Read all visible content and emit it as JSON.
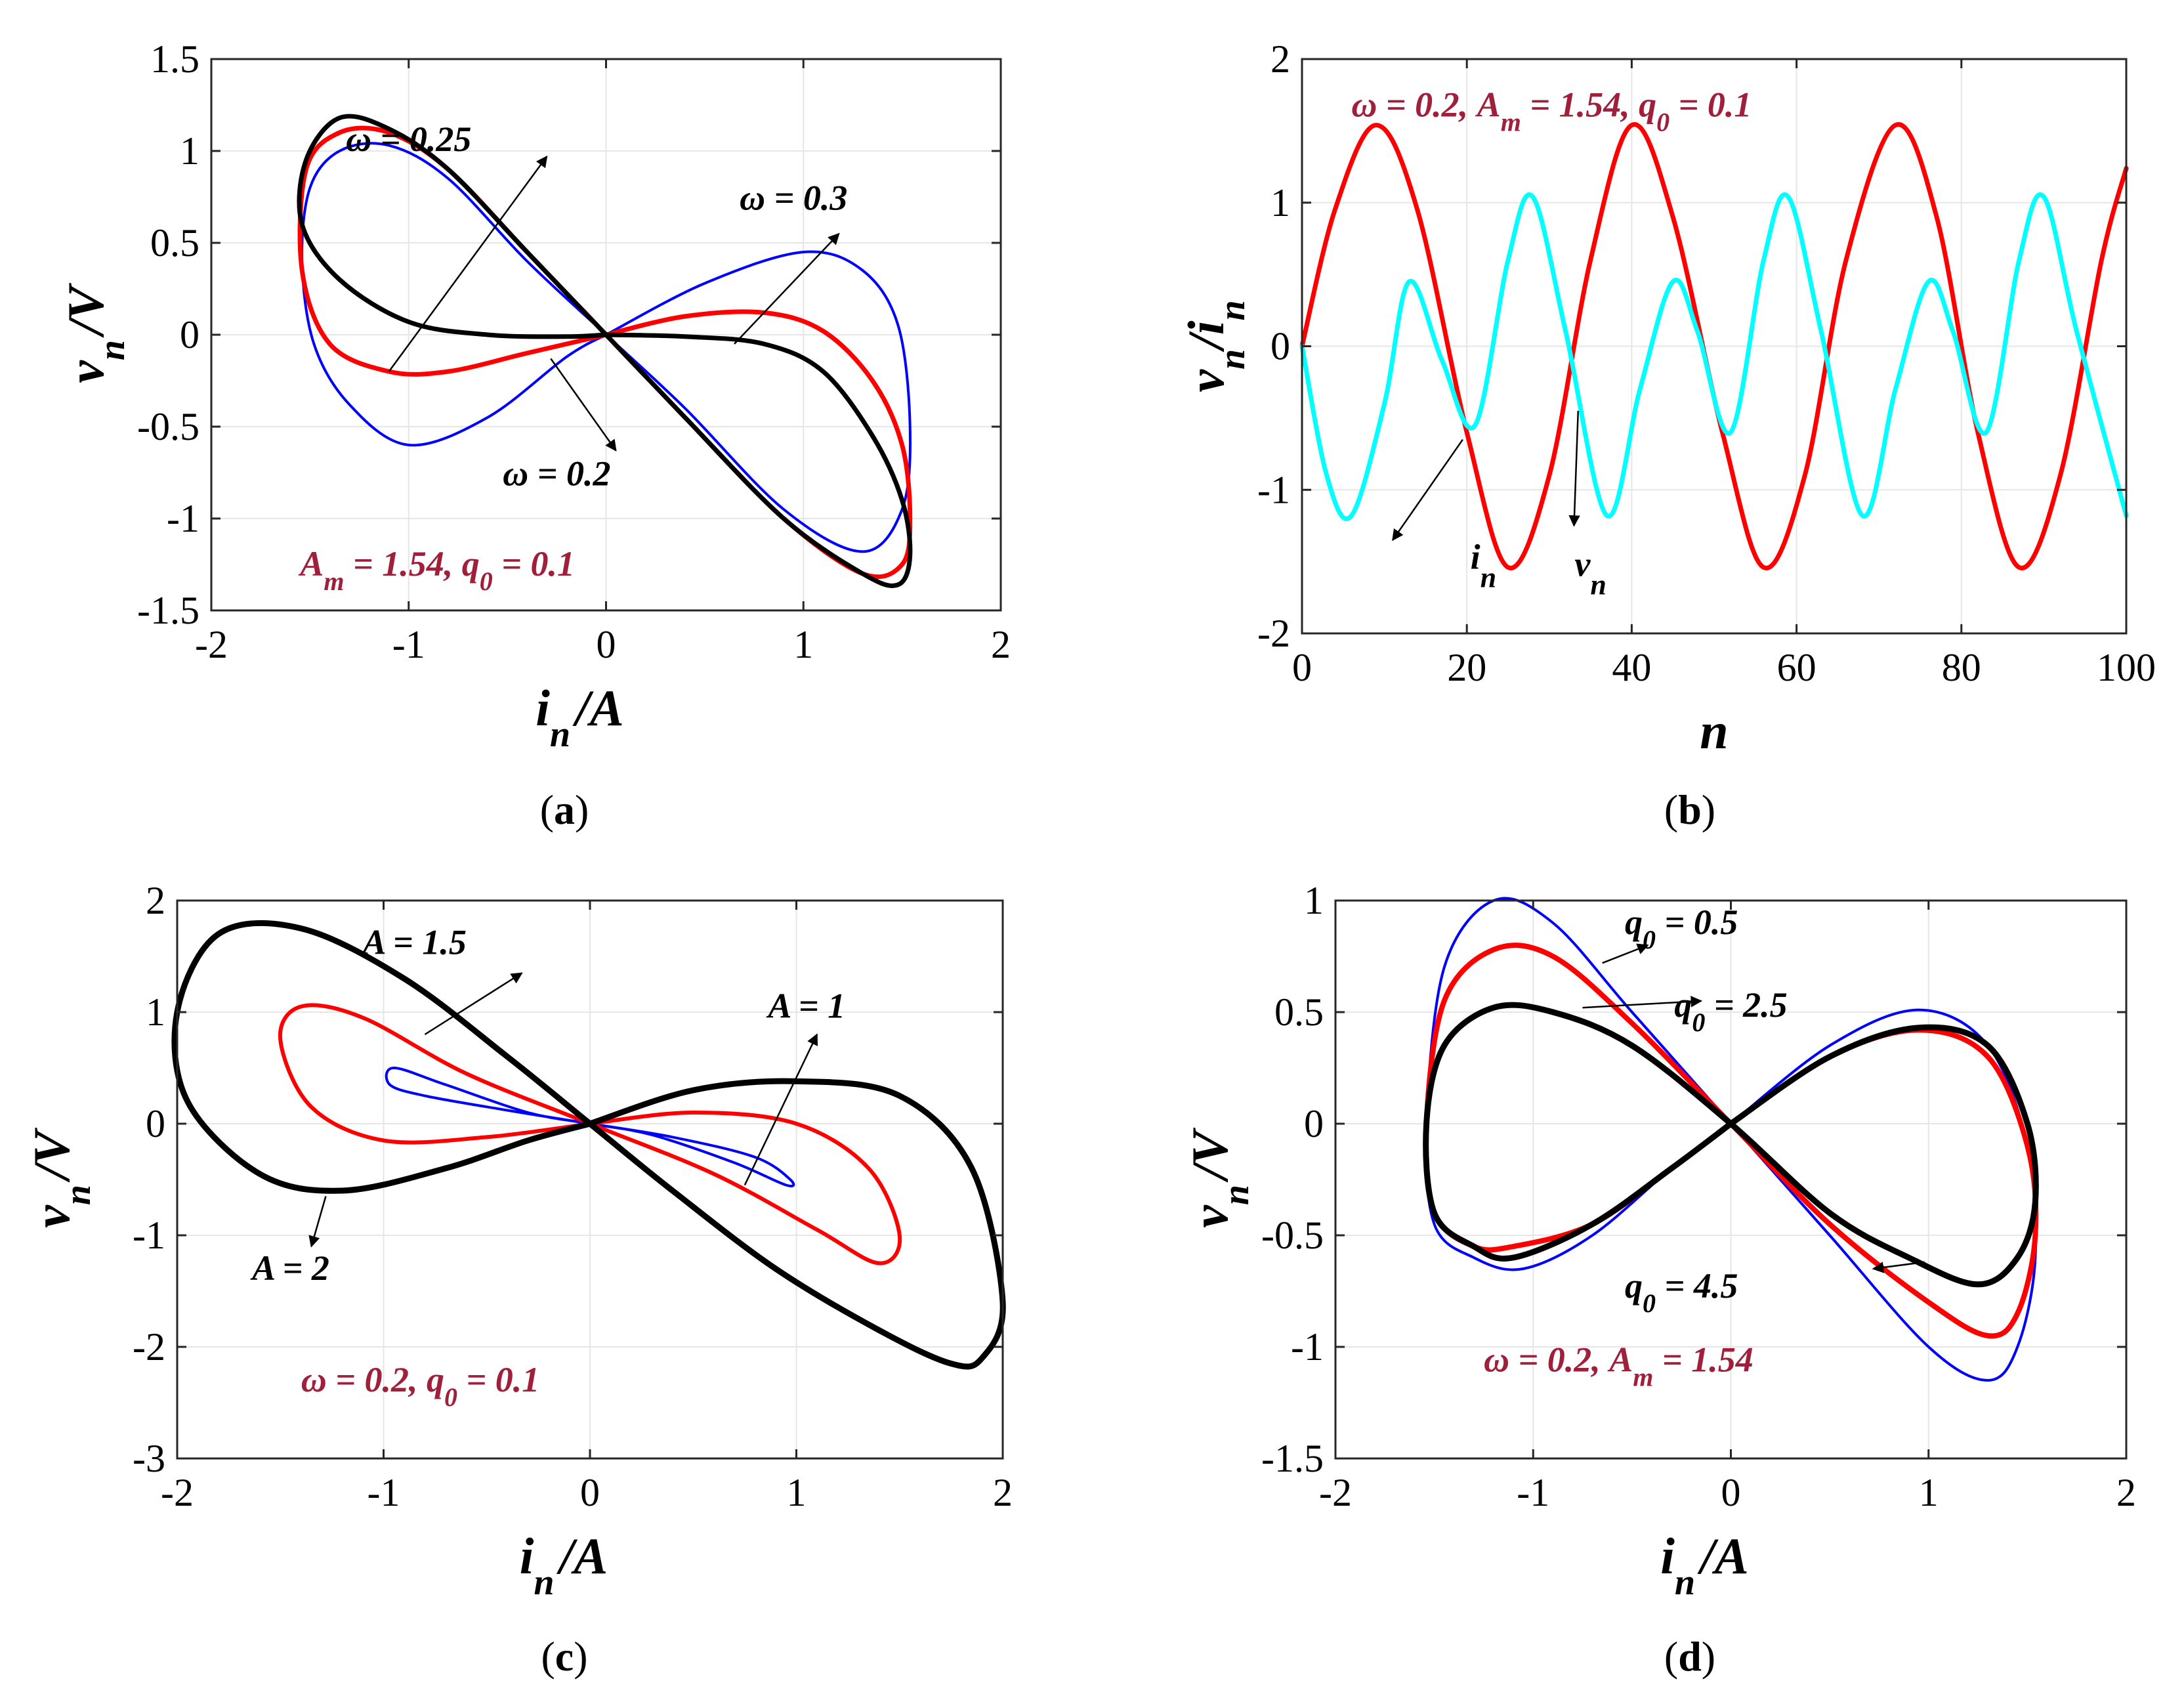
{
  "chart_data": [
    {
      "panel": "(a)",
      "type": "line",
      "xlabel_main": "i",
      "xlabel_sub": "n",
      "xlabel_unit": "/A",
      "ylabel_main": "v",
      "ylabel_sub": "n",
      "ylabel_unit": "/V",
      "xlim": [
        -2,
        2
      ],
      "ylim": [
        -1.5,
        1.5
      ],
      "xticks": [
        -2,
        -1,
        0,
        1,
        2
      ],
      "yticks": [
        -1.5,
        -1,
        -0.5,
        0,
        0.5,
        1,
        1.5
      ],
      "grid": true,
      "series": [
        {
          "label": "ω = 0.3",
          "color": "#0000ff",
          "width": 4,
          "x": [
            0,
            0.5,
            1,
            1.3,
            1.48,
            1.54,
            1.5,
            1.3,
            0.9,
            0.4,
            0,
            -0.4,
            -0.8,
            -1.1,
            -1.35,
            -1.5,
            -1.54,
            -1.48,
            -1.3,
            -1.0,
            -0.6,
            -0.2,
            0
          ],
          "y": [
            0,
            0.28,
            0.45,
            0.35,
            0.05,
            -0.5,
            -0.95,
            -1.18,
            -0.95,
            -0.4,
            0,
            0.4,
            0.85,
            1.03,
            1.0,
            0.8,
            0.4,
            -0.05,
            -0.38,
            -0.6,
            -0.45,
            -0.12,
            0
          ]
        },
        {
          "label": "ω = 0.25",
          "color": "#ff0000",
          "width": 7,
          "x": [
            0,
            0.4,
            0.8,
            1.1,
            1.35,
            1.5,
            1.54,
            1.5,
            1.3,
            0.9,
            0.4,
            0,
            -0.4,
            -0.8,
            -1.1,
            -1.35,
            -1.52,
            -1.54,
            -1.4,
            -1.1,
            -0.8,
            -0.4,
            0
          ],
          "y": [
            0,
            0.1,
            0.12,
            0.02,
            -0.25,
            -0.6,
            -1.0,
            -1.25,
            -1.3,
            -1.0,
            -0.45,
            0,
            0.45,
            0.9,
            1.1,
            1.1,
            0.9,
            0.35,
            -0.05,
            -0.2,
            -0.2,
            -0.1,
            0
          ]
        },
        {
          "label": "ω = 0.2",
          "color": "#000000",
          "width": 7,
          "x": [
            0,
            0.4,
            0.8,
            1.1,
            1.35,
            1.5,
            1.54,
            1.48,
            1.3,
            0.9,
            0.4,
            0,
            -0.4,
            -0.8,
            -1.1,
            -1.35,
            -1.52,
            -1.54,
            -1.35,
            -1.0,
            -0.6,
            -0.2,
            0
          ],
          "y": [
            0,
            -0.01,
            -0.05,
            -0.2,
            -0.55,
            -0.9,
            -1.2,
            -1.36,
            -1.3,
            -1.0,
            -0.45,
            0,
            0.45,
            0.9,
            1.12,
            1.18,
            0.95,
            0.6,
            0.3,
            0.07,
            0.0,
            -0.01,
            0
          ]
        }
      ],
      "annotations": [
        "ω = 0.25",
        "ω = 0.3",
        "ω = 0.2"
      ],
      "params_text": "A = 1.54,  q = 0.1"
    },
    {
      "panel": "(b)",
      "type": "line",
      "xlabel": "n",
      "ylabel_main": "v",
      "ylabel_mid": "/i",
      "ylabel_sub": "n",
      "xlim": [
        0,
        100
      ],
      "ylim": [
        -2,
        2
      ],
      "xticks": [
        0,
        20,
        40,
        60,
        80,
        100
      ],
      "yticks": [
        -2,
        -1,
        0,
        1,
        2
      ],
      "grid": true,
      "series": [
        {
          "name": "i_n",
          "color": "#ff0000",
          "width": 7,
          "x": [
            0,
            4,
            9,
            14,
            20,
            25,
            30,
            35,
            40,
            45,
            51,
            56,
            61,
            66,
            72,
            77,
            82,
            87,
            92,
            97,
            100
          ],
          "y": [
            0,
            0.95,
            1.54,
            0.95,
            -0.6,
            -1.54,
            -0.9,
            0.6,
            1.54,
            0.9,
            -0.6,
            -1.54,
            -0.9,
            0.6,
            1.54,
            0.9,
            -0.6,
            -1.54,
            -0.9,
            0.6,
            1.24
          ]
        },
        {
          "name": "v_n",
          "color": "#00ffff",
          "width": 7,
          "x": [
            0,
            3,
            6,
            10,
            13,
            17,
            21,
            25,
            28,
            32,
            37,
            41,
            45,
            48,
            52,
            56,
            59,
            63,
            68,
            72,
            76,
            79,
            83,
            87,
            90,
            94,
            100
          ],
          "y": [
            0,
            -0.9,
            -1.18,
            -0.4,
            0.45,
            -0.1,
            -0.55,
            0.6,
            1.04,
            0.1,
            -1.18,
            -0.3,
            0.45,
            0.1,
            -0.6,
            0.6,
            1.04,
            0.1,
            -1.18,
            -0.3,
            0.45,
            0.1,
            -0.6,
            0.6,
            1.04,
            0.1,
            -1.18
          ]
        }
      ],
      "annotations": [
        "i",
        "v"
      ],
      "params_text": "ω = 0.2,  A = 1.54,  q = 0.1"
    },
    {
      "panel": "(c)",
      "type": "line",
      "xlabel_main": "i",
      "xlabel_sub": "n",
      "xlabel_unit": "/A",
      "ylabel_main": "v",
      "ylabel_sub": "n",
      "ylabel_unit": "/V",
      "xlim": [
        -2,
        2
      ],
      "ylim": [
        -3,
        2
      ],
      "xticks": [
        -2,
        -1,
        0,
        1,
        2
      ],
      "yticks": [
        -3,
        -2,
        -1,
        0,
        1,
        2
      ],
      "grid": true,
      "series": [
        {
          "label": "A = 1",
          "color": "#0000ff",
          "width": 4,
          "x": [
            0,
            0.4,
            0.8,
            0.97,
            0.95,
            0.7,
            0.3,
            0,
            -0.3,
            -0.7,
            -0.95,
            -0.97,
            -0.8,
            -0.4,
            0
          ],
          "y": [
            0,
            -0.12,
            -0.3,
            -0.5,
            -0.55,
            -0.35,
            -0.1,
            0,
            0.1,
            0.35,
            0.5,
            0.35,
            0.25,
            0.12,
            0
          ]
        },
        {
          "label": "A = 1.5",
          "color": "#ff0000",
          "width": 6,
          "x": [
            0,
            0.5,
            1.0,
            1.35,
            1.5,
            1.4,
            1.1,
            0.6,
            0,
            -0.6,
            -1.1,
            -1.4,
            -1.5,
            -1.35,
            -1.0,
            -0.5,
            0
          ],
          "y": [
            0,
            0.1,
            0.0,
            -0.4,
            -1.0,
            -1.25,
            -0.95,
            -0.45,
            0,
            0.45,
            0.95,
            1.05,
            0.75,
            0.15,
            -0.15,
            -0.12,
            0
          ]
        },
        {
          "label": "A = 2",
          "color": "#000000",
          "width": 9,
          "x": [
            0,
            0.5,
            1.0,
            1.5,
            1.85,
            2.0,
            1.9,
            1.75,
            1.4,
            0.9,
            0.4,
            0,
            -0.4,
            -0.9,
            -1.4,
            -1.8,
            -2.0,
            -1.95,
            -1.6,
            -1.2,
            -0.7,
            -0.3,
            0
          ],
          "y": [
            0,
            0.3,
            0.38,
            0.25,
            -0.4,
            -1.6,
            -2.1,
            -2.15,
            -1.85,
            -1.3,
            -0.6,
            0,
            0.6,
            1.3,
            1.75,
            1.7,
            1.0,
            0.2,
            -0.45,
            -0.6,
            -0.4,
            -0.15,
            0
          ]
        }
      ],
      "annotations": [
        "A = 1.5",
        "A = 1",
        "A = 2"
      ],
      "params_text": "ω = 0.2, q = 0.1"
    },
    {
      "panel": "(d)",
      "type": "line",
      "xlabel_main": "i",
      "xlabel_sub": "n",
      "xlabel_unit": "/A",
      "ylabel_main": "v",
      "ylabel_sub": "n",
      "ylabel_unit": "/V",
      "xlim": [
        -2,
        2
      ],
      "ylim": [
        -1.5,
        1
      ],
      "xticks": [
        -2,
        -1,
        0,
        1,
        2
      ],
      "yticks": [
        -1.5,
        -1,
        -0.5,
        0,
        0.5,
        1
      ],
      "grid": true,
      "series": [
        {
          "label": "q = 0.5",
          "color": "#0000ff",
          "width": 4,
          "x": [
            0,
            0.5,
            0.95,
            1.3,
            1.5,
            1.54,
            1.45,
            1.3,
            1.0,
            0.5,
            0,
            -0.5,
            -0.9,
            -1.2,
            -1.45,
            -1.54,
            -1.5,
            -1.3,
            -1.05,
            -0.7,
            -0.3,
            0
          ],
          "y": [
            0,
            0.35,
            0.51,
            0.35,
            -0.1,
            -0.6,
            -1.0,
            -1.15,
            -1.0,
            -0.5,
            0,
            0.5,
            0.9,
            1.0,
            0.7,
            0.0,
            -0.45,
            -0.6,
            -0.65,
            -0.5,
            -0.2,
            0
          ]
        },
        {
          "label": "q = 2.5",
          "color": "#ff0000",
          "width": 8,
          "x": [
            0,
            0.5,
            0.95,
            1.3,
            1.5,
            1.54,
            1.45,
            1.3,
            1.0,
            0.5,
            0,
            -0.5,
            -0.9,
            -1.2,
            -1.45,
            -1.54,
            -1.5,
            -1.3,
            -1.1,
            -0.7,
            -0.3,
            0
          ],
          "y": [
            0,
            0.3,
            0.42,
            0.3,
            -0.1,
            -0.5,
            -0.85,
            -0.95,
            -0.8,
            -0.45,
            0,
            0.45,
            0.75,
            0.78,
            0.55,
            0.0,
            -0.4,
            -0.55,
            -0.55,
            -0.45,
            -0.2,
            0
          ]
        },
        {
          "label": "q = 4.5",
          "color": "#000000",
          "width": 9,
          "x": [
            0,
            0.5,
            0.95,
            1.3,
            1.5,
            1.54,
            1.45,
            1.25,
            0.9,
            0.5,
            0,
            -0.5,
            -0.9,
            -1.2,
            -1.45,
            -1.54,
            -1.5,
            -1.3,
            -1.1,
            -0.7,
            -0.3,
            0
          ],
          "y": [
            0,
            0.3,
            0.43,
            0.35,
            0.0,
            -0.35,
            -0.6,
            -0.72,
            -0.6,
            -0.4,
            0,
            0.35,
            0.5,
            0.52,
            0.35,
            0.0,
            -0.4,
            -0.55,
            -0.6,
            -0.45,
            -0.2,
            0
          ]
        }
      ],
      "annotations": [
        "q = 0.5",
        "q = 2.5",
        "q = 4.5"
      ],
      "params_text": "ω = 0.2, A = 1.54"
    }
  ],
  "panel_labels": [
    "(a)",
    "(b)",
    "(c)",
    "(d)"
  ],
  "params_color": "#a0203c"
}
